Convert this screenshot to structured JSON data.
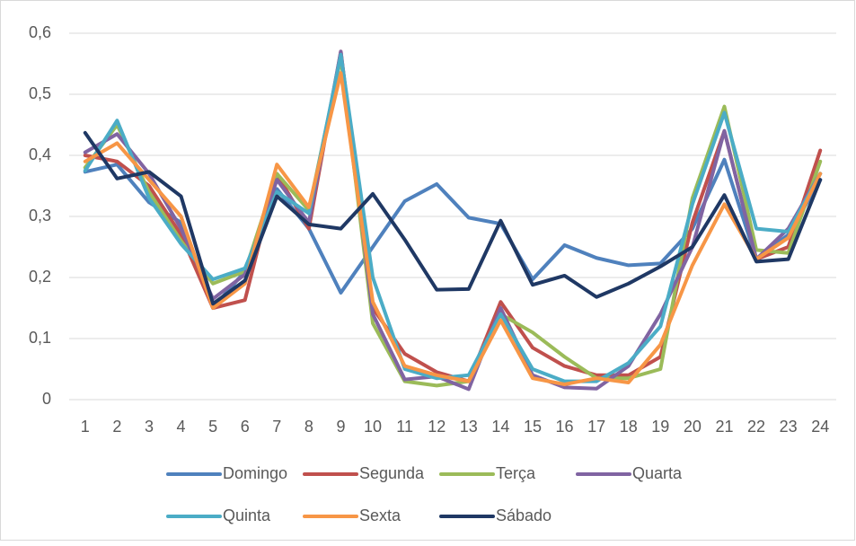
{
  "chart_data": {
    "type": "line",
    "categories": [
      "1",
      "2",
      "3",
      "4",
      "5",
      "6",
      "7",
      "8",
      "9",
      "10",
      "11",
      "12",
      "13",
      "14",
      "15",
      "16",
      "17",
      "18",
      "19",
      "20",
      "21",
      "22",
      "23",
      "24"
    ],
    "series": [
      {
        "name": "Domingo",
        "color": "#4f81bd",
        "values": [
          0.373,
          0.385,
          0.323,
          0.29,
          0.15,
          0.21,
          0.345,
          0.28,
          0.175,
          0.25,
          0.325,
          0.353,
          0.298,
          0.288,
          0.197,
          0.253,
          0.232,
          0.22,
          0.223,
          0.28,
          0.393,
          0.23,
          0.27,
          0.36
        ]
      },
      {
        "name": "Segunda",
        "color": "#c0504d",
        "values": [
          0.4,
          0.39,
          0.35,
          0.27,
          0.15,
          0.163,
          0.37,
          0.28,
          0.57,
          0.15,
          0.075,
          0.045,
          0.03,
          0.16,
          0.085,
          0.055,
          0.04,
          0.04,
          0.07,
          0.29,
          0.44,
          0.23,
          0.25,
          0.408
        ]
      },
      {
        "name": "Terça",
        "color": "#9bbb59",
        "values": [
          0.38,
          0.45,
          0.34,
          0.26,
          0.19,
          0.21,
          0.37,
          0.31,
          0.56,
          0.125,
          0.03,
          0.023,
          0.03,
          0.14,
          0.11,
          0.07,
          0.035,
          0.035,
          0.05,
          0.33,
          0.48,
          0.245,
          0.24,
          0.39
        ]
      },
      {
        "name": "Quarta",
        "color": "#8064a2",
        "values": [
          0.405,
          0.435,
          0.37,
          0.28,
          0.165,
          0.205,
          0.36,
          0.29,
          0.57,
          0.14,
          0.033,
          0.038,
          0.017,
          0.15,
          0.04,
          0.02,
          0.018,
          0.055,
          0.14,
          0.25,
          0.44,
          0.23,
          0.28,
          0.37
        ]
      },
      {
        "name": "Quinta",
        "color": "#4bacc6",
        "values": [
          0.375,
          0.457,
          0.33,
          0.255,
          0.197,
          0.215,
          0.34,
          0.305,
          0.565,
          0.2,
          0.05,
          0.035,
          0.04,
          0.14,
          0.05,
          0.03,
          0.03,
          0.06,
          0.12,
          0.32,
          0.47,
          0.28,
          0.275,
          0.37
        ]
      },
      {
        "name": "Sexta",
        "color": "#f79646",
        "values": [
          0.39,
          0.42,
          0.36,
          0.3,
          0.15,
          0.19,
          0.385,
          0.315,
          0.535,
          0.16,
          0.055,
          0.04,
          0.03,
          0.13,
          0.035,
          0.025,
          0.035,
          0.028,
          0.09,
          0.22,
          0.32,
          0.23,
          0.265,
          0.37
        ]
      },
      {
        "name": "Sábado",
        "color": "#1f3864",
        "values": [
          0.437,
          0.362,
          0.373,
          0.333,
          0.157,
          0.195,
          0.333,
          0.287,
          0.28,
          0.337,
          0.262,
          0.18,
          0.181,
          0.293,
          0.188,
          0.203,
          0.168,
          0.19,
          0.218,
          0.25,
          0.335,
          0.226,
          0.23,
          0.36
        ]
      }
    ],
    "ylim": [
      0,
      0.6
    ],
    "yticks": [
      0,
      {
        "value": 0.1,
        "label": "0,1"
      },
      {
        "value": 0.2,
        "label": "0,2"
      },
      {
        "value": 0.3,
        "label": "0,3"
      },
      {
        "value": 0.4,
        "label": "0,4"
      },
      {
        "value": 0.5,
        "label": "0,5"
      },
      {
        "value": 0.6,
        "label": "0,6"
      }
    ],
    "grid": true,
    "legend": "bottom"
  }
}
